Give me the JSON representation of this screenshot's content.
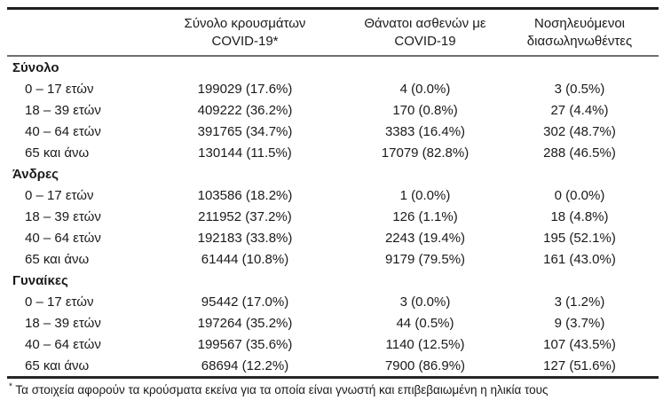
{
  "page": {
    "background": "#ffffff",
    "text_color": "#1a1a1a",
    "rule_dark_color": "#1f1f1f",
    "rule_mid_color": "#6e6e6e"
  },
  "table": {
    "column_headers": [
      {
        "line1": "Σύνολο κρουσμάτων",
        "line2": "COVID-19*"
      },
      {
        "line1": "Θάνατοι ασθενών με",
        "line2": "COVID-19"
      },
      {
        "line1": "Νοσηλευόμενοι",
        "line2": "διασωληνωθέντες"
      }
    ],
    "sections": [
      {
        "label": "Σύνολο",
        "rows": [
          {
            "age": "0 – 17 ετών",
            "cases": "199029 (17.6%)",
            "deaths": "4 (0.0%)",
            "intubated": "3 (0.5%)"
          },
          {
            "age": "18 – 39 ετών",
            "cases": "409222 (36.2%)",
            "deaths": "170 (0.8%)",
            "intubated": "27 (4.4%)"
          },
          {
            "age": "40 – 64 ετών",
            "cases": "391765 (34.7%)",
            "deaths": "3383 (16.4%)",
            "intubated": "302 (48.7%)"
          },
          {
            "age": "65 και άνω",
            "cases": "130144 (11.5%)",
            "deaths": "17079 (82.8%)",
            "intubated": "288 (46.5%)"
          }
        ]
      },
      {
        "label": "Άνδρες",
        "rows": [
          {
            "age": "0 – 17 ετών",
            "cases": "103586 (18.2%)",
            "deaths": "1 (0.0%)",
            "intubated": "0 (0.0%)"
          },
          {
            "age": "18 – 39 ετών",
            "cases": "211952 (37.2%)",
            "deaths": "126 (1.1%)",
            "intubated": "18 (4.8%)"
          },
          {
            "age": "40 – 64 ετών",
            "cases": "192183 (33.8%)",
            "deaths": "2243 (19.4%)",
            "intubated": "195 (52.1%)"
          },
          {
            "age": "65 και άνω",
            "cases": "61444 (10.8%)",
            "deaths": "9179 (79.5%)",
            "intubated": "161 (43.0%)"
          }
        ]
      },
      {
        "label": "Γυναίκες",
        "rows": [
          {
            "age": "0 – 17 ετών",
            "cases": "95442 (17.0%)",
            "deaths": "3 (0.0%)",
            "intubated": "3 (1.2%)"
          },
          {
            "age": "18 – 39 ετών",
            "cases": "197264 (35.2%)",
            "deaths": "44 (0.5%)",
            "intubated": "9 (3.7%)"
          },
          {
            "age": "40 – 64 ετών",
            "cases": "199567 (35.6%)",
            "deaths": "1140 (12.5%)",
            "intubated": "107 (43.5%)"
          },
          {
            "age": "65 και άνω",
            "cases": "68694 (12.2%)",
            "deaths": "7900 (86.9%)",
            "intubated": "127 (51.6%)"
          }
        ]
      }
    ],
    "footnote": {
      "marker": "*",
      "text": "Τα στοιχεία αφορούν τα κρούσματα εκείνα για τα οποία είναι γνωστή και επιβεβαιωμένη η ηλικία τους"
    }
  }
}
